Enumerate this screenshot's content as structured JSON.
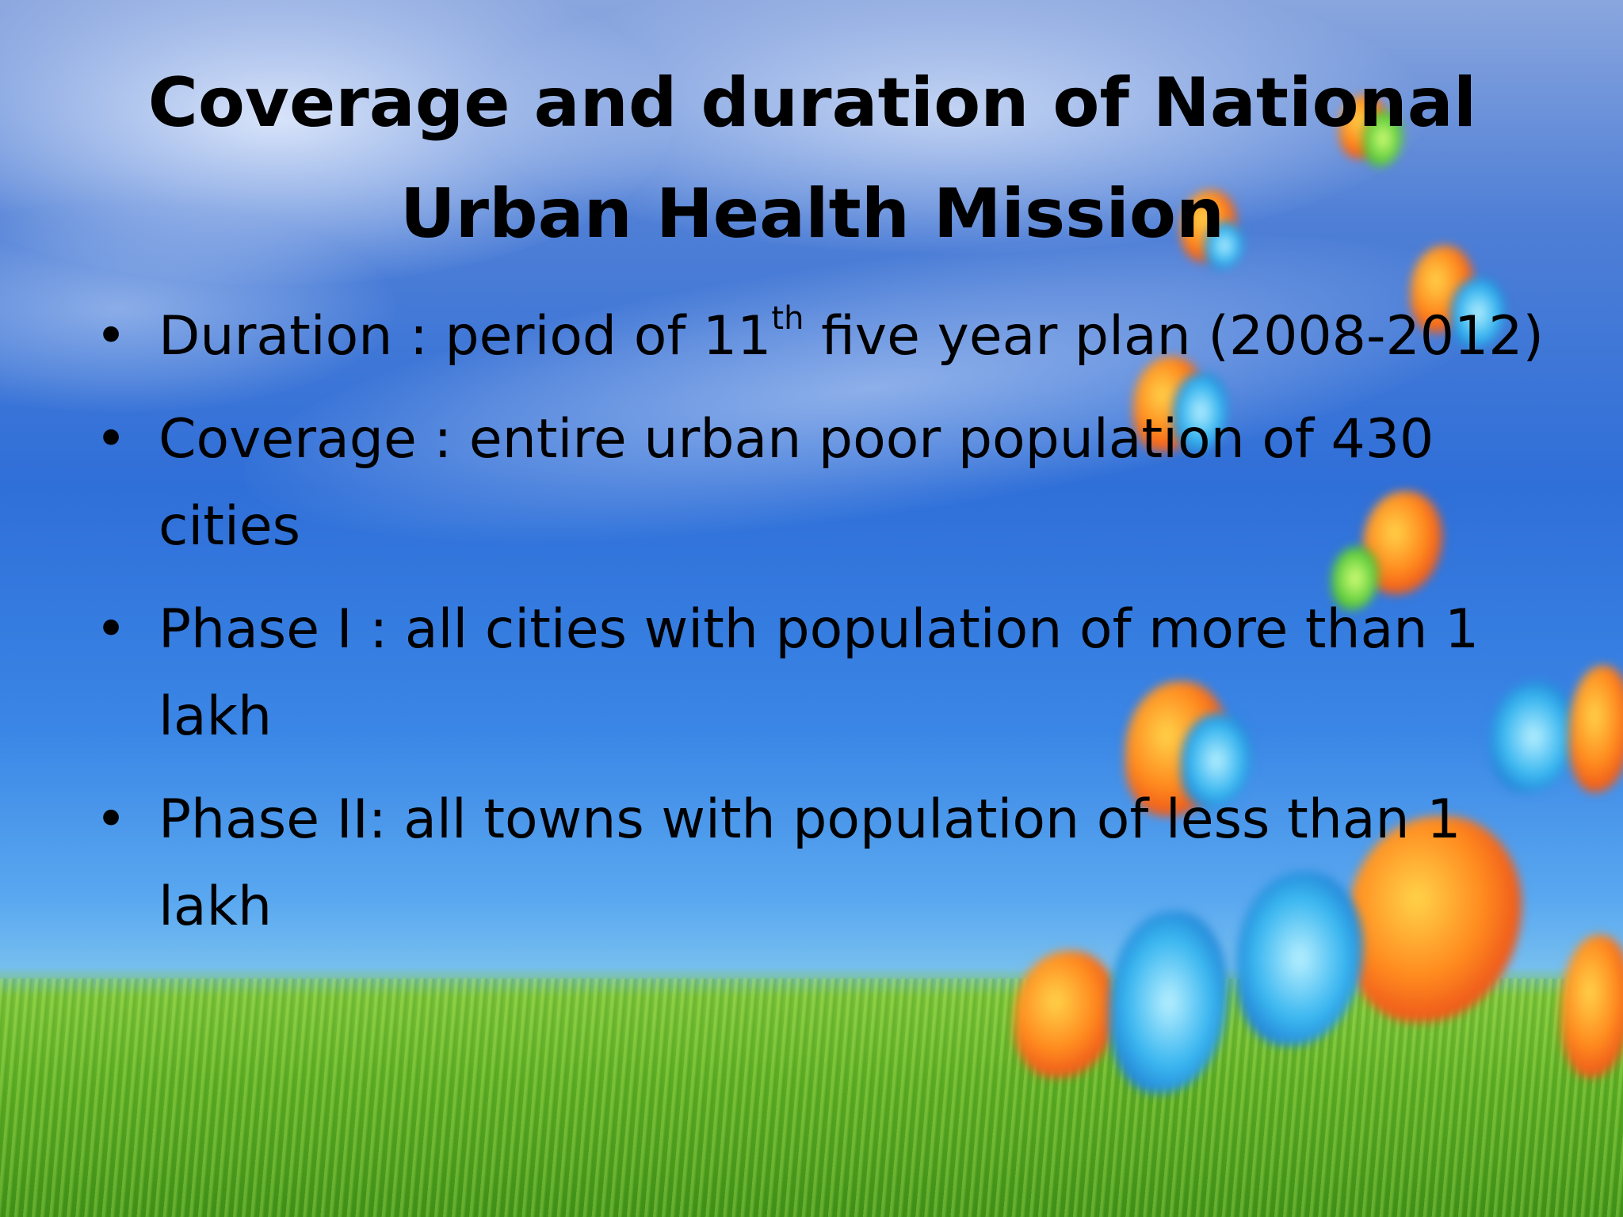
{
  "slide": {
    "title": "Coverage and duration of National Urban Health Mission",
    "bullet_glyph": "•",
    "bullets": [
      {
        "text_before": "Duration : period of 11",
        "superscript": "th",
        "text_after": " five year plan (2008-2012)"
      },
      {
        "text": "Coverage : entire urban poor population of 430 cities"
      },
      {
        "text": "Phase I : all cities with population of more than 1 lakh"
      },
      {
        "text": "Phase II: all towns with population of less than 1 lakh"
      }
    ]
  },
  "background": {
    "sky_color": "#3a7ee0",
    "grass_color": "#5fae25",
    "decor_icons": [
      "cloud-decor",
      "butterfly-decor",
      "grass-decor"
    ]
  }
}
